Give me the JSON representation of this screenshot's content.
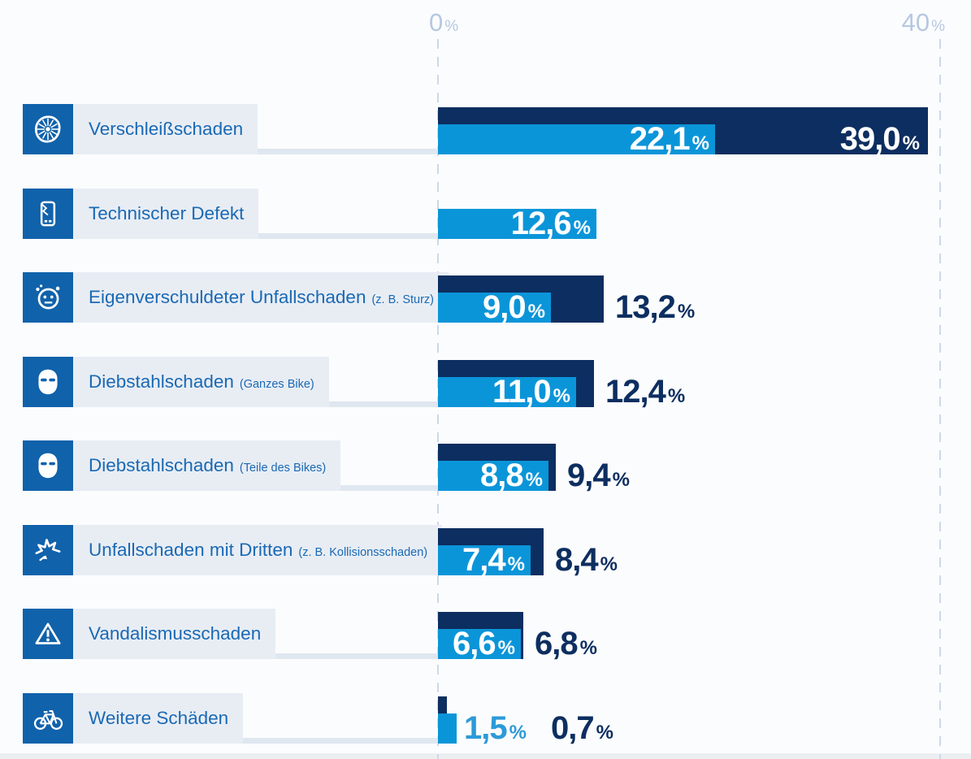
{
  "chart_data": {
    "type": "bar",
    "orientation": "horizontal",
    "unit": "%",
    "xlim": [
      0,
      40
    ],
    "grid": "dashed vertical lines at 0% and 40%",
    "legend": "none",
    "axis_ticks": [
      {
        "num": "0"
      },
      {
        "num": "40"
      }
    ],
    "series": [
      {
        "name": "hellblau",
        "color": "#0b95d9"
      },
      {
        "name": "dunkelblau",
        "color": "#0d2e60"
      }
    ],
    "rows": [
      {
        "label": "Verschleißschaden",
        "sublabel": "",
        "icon": "worn-wheel-icon",
        "light": {
          "value": 22.1,
          "display": "22,1",
          "placement": "inside"
        },
        "dark": {
          "value": 39.0,
          "display": "39,0",
          "placement": "inside"
        }
      },
      {
        "label": "Technischer Defekt",
        "sublabel": "",
        "icon": "broken-device-icon",
        "light": {
          "value": 12.6,
          "display": "12,6",
          "placement": "inside"
        },
        "dark": null
      },
      {
        "label": "Eigenverschuldeter Unfallschaden",
        "sublabel": "(z. B. Sturz)",
        "icon": "dizzy-face-icon",
        "light": {
          "value": 9.0,
          "display": "9,0",
          "placement": "inside"
        },
        "dark": {
          "value": 13.2,
          "display": "13,2",
          "placement": "outside"
        }
      },
      {
        "label": "Diebstahlschaden",
        "sublabel": "(Ganzes Bike)",
        "icon": "balaclava-icon",
        "light": {
          "value": 11.0,
          "display": "11,0",
          "placement": "inside"
        },
        "dark": {
          "value": 12.4,
          "display": "12,4",
          "placement": "outside"
        }
      },
      {
        "label": "Diebstahlschaden",
        "sublabel": "(Teile des Bikes)",
        "icon": "balaclava-icon",
        "light": {
          "value": 8.8,
          "display": "8,8",
          "placement": "inside"
        },
        "dark": {
          "value": 9.4,
          "display": "9,4",
          "placement": "outside"
        }
      },
      {
        "label": "Unfallschaden mit Dritten",
        "sublabel": "(z. B. Kollisionsschaden)",
        "icon": "collision-icon",
        "light": {
          "value": 7.4,
          "display": "7,4",
          "placement": "inside"
        },
        "dark": {
          "value": 8.4,
          "display": "8,4",
          "placement": "outside"
        }
      },
      {
        "label": "Vandalismusschaden",
        "sublabel": "",
        "icon": "warning-triangle-icon",
        "light": {
          "value": 6.6,
          "display": "6,6",
          "placement": "inside"
        },
        "dark": {
          "value": 6.8,
          "display": "6,8",
          "placement": "outside"
        }
      },
      {
        "label": "Weitere Schäden",
        "sublabel": "",
        "icon": "bicycle-icon",
        "light": {
          "value": 1.5,
          "display": "1,5",
          "placement": "outside"
        },
        "dark": {
          "value": 0.7,
          "display": "0,7",
          "placement": "outside"
        }
      }
    ],
    "colors": {
      "light_bar": "#0b95d9",
      "dark_bar": "#0d2e60",
      "icon_bg": "#1062ab",
      "chip_bg": "#e8edf4",
      "label_text": "#1a69b4",
      "axis_text": "#b6c8e1",
      "grid_line": "#ccd9ea",
      "value_inside": "#ffffff"
    }
  }
}
